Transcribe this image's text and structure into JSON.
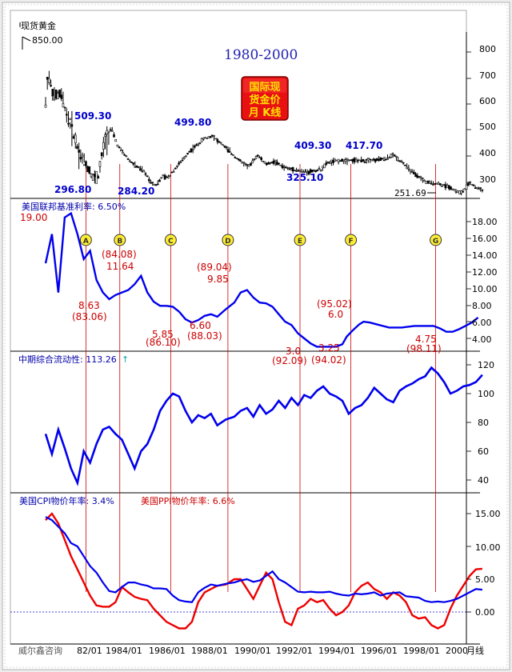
{
  "price_panel": {
    "label": "现货黄金",
    "high_value": "850.00",
    "period_title": "1980-2000",
    "badge_lines": [
      "国际现",
      "货金价",
      "月 K线"
    ],
    "annotations": [
      "509.30",
      "296.80",
      "284.20",
      "499.80",
      "409.30",
      "325.10",
      "417.70",
      "251.69"
    ],
    "axis_ticks": [
      "800",
      "700",
      "600",
      "500",
      "400",
      "300"
    ]
  },
  "rate_panel": {
    "title": "美国联邦基准利率: 6.50%",
    "markers": [
      "A",
      "B",
      "C",
      "D",
      "E",
      "F",
      "G"
    ],
    "annotations": [
      "19.00",
      "(84.08)",
      "11.64",
      "8.63",
      "(83.06)",
      "(89.04)",
      "9.85",
      "5.85",
      "(86.10)",
      "6.60",
      "(88.03)",
      "3.0",
      "(92.09)",
      "(95.02)",
      "6.0",
      "3.25",
      "(94.02)",
      "4.75",
      "(98.11)"
    ],
    "axis_ticks": [
      "18.00",
      "16.00",
      "14.00",
      "12.00",
      "10.00",
      "8.00",
      "6.00",
      "4.00"
    ]
  },
  "liquidity_panel": {
    "title": "中期综合流动性: 113.26",
    "arrow": "↑",
    "axis_ticks": [
      "120",
      "100",
      "80",
      "60",
      "40"
    ]
  },
  "inflation_panel": {
    "cpi_title": "美国CPI物价年率: 3.4%",
    "ppi_title": "美国PPI物价年率: 6.6%",
    "axis_ticks": [
      "15.00",
      "10.00",
      "5.00",
      "0.00"
    ]
  },
  "footer": {
    "source": "威尔鑫咨询",
    "period_label": "月线",
    "date_ticks": [
      "82/01",
      "1984/01",
      "1986/01",
      "1988/01",
      "1990/01",
      "1992/01",
      "1994/01",
      "1996/01",
      "1998/01",
      "2000"
    ]
  },
  "colors": {
    "price_candles": "#000000",
    "rate_line": "#0000ee",
    "liquidity_line": "#0000ee",
    "cpi_line": "#0000ee",
    "ppi_line": "#ee0000",
    "annotation_blue": "#0000cc",
    "annotation_red": "#cc0000",
    "guide_line": "#cc0000",
    "marker_fill": "#ffee33"
  },
  "chart_data": [
    {
      "type": "line",
      "x": [
        1980.0,
        1980.1,
        1980.4,
        1980.7,
        1981.0,
        1981.3,
        1981.6,
        1982.0,
        1982.3,
        1982.5,
        1982.8,
        1983.1,
        1983.4,
        1983.7,
        1984.0,
        1984.3,
        1984.6,
        1985.0,
        1985.2,
        1985.5,
        1985.8,
        1986.0,
        1986.4,
        1986.8,
        1987.1,
        1987.5,
        1987.9,
        1988.1,
        1988.4,
        1988.8,
        1989.2,
        1989.6,
        1990.0,
        1990.4,
        1990.8,
        1991.2,
        1991.6,
        1992.0,
        1992.4,
        1992.7,
        1993.0,
        1993.3,
        1993.6,
        1994.0,
        1994.5,
        1995.0,
        1995.5,
        1996.0,
        1996.4,
        1996.8,
        1997.2,
        1997.6,
        1998.0,
        1998.5,
        1999.0,
        1999.3,
        1999.6,
        1999.8,
        2000.0,
        2000.3,
        2000.6
      ],
      "values": [
        600,
        720,
        620,
        640,
        560,
        490,
        410,
        360,
        310,
        330,
        460,
        509.3,
        440,
        410,
        380,
        360,
        345,
        300,
        290,
        320,
        320,
        345,
        380,
        420,
        440,
        470,
        480,
        460,
        440,
        410,
        380,
        360,
        405,
        370,
        380,
        360,
        350,
        345,
        340,
        345,
        350,
        375,
        380,
        385,
        385,
        384,
        385,
        390,
        405,
        380,
        345,
        320,
        300,
        295,
        285,
        270,
        260,
        275,
        300,
        280,
        272
      ],
      "annotations": [
        "509.30",
        "296.80",
        "284.20",
        "499.80",
        "409.30",
        "325.10",
        "417.70",
        "251.69"
      ],
      "ylim": [
        220,
        880
      ],
      "xlim": [
        1980.0,
        2000.9
      ]
    },
    {
      "type": "line",
      "title": "美国联邦基准利率: 6.50%",
      "x": [
        1980.0,
        1980.3,
        1980.6,
        1980.9,
        1981.2,
        1981.5,
        1981.8,
        1982.1,
        1982.4,
        1982.7,
        1983.0,
        1983.3,
        1983.6,
        1983.9,
        1984.2,
        1984.5,
        1984.8,
        1985.1,
        1985.4,
        1985.7,
        1986.0,
        1986.3,
        1986.6,
        1986.9,
        1987.2,
        1987.5,
        1987.8,
        1988.1,
        1988.5,
        1988.9,
        1989.2,
        1989.5,
        1989.8,
        1990.1,
        1990.4,
        1990.7,
        1991.0,
        1991.3,
        1991.6,
        1991.9,
        1992.2,
        1992.5,
        1992.8,
        1993.1,
        1993.4,
        1993.7,
        1994.0,
        1994.2,
        1994.5,
        1994.8,
        1995.0,
        1995.3,
        1995.6,
        1995.9,
        1996.2,
        1996.5,
        1996.8,
        1997.1,
        1997.4,
        1997.7,
        1998.0,
        1998.3,
        1998.6,
        1998.9,
        1999.2,
        1999.5,
        1999.8,
        2000.1,
        2000.4
      ],
      "values": [
        13.0,
        16.5,
        9.5,
        18.5,
        19.0,
        16.5,
        13.5,
        14.5,
        11.0,
        9.5,
        8.7,
        9.2,
        9.5,
        9.8,
        10.5,
        11.5,
        9.5,
        8.4,
        7.9,
        7.9,
        7.8,
        7.2,
        6.3,
        5.9,
        6.2,
        6.7,
        6.9,
        6.6,
        7.5,
        8.3,
        9.5,
        9.8,
        8.9,
        8.3,
        8.2,
        7.8,
        6.9,
        6.0,
        5.6,
        4.6,
        4.0,
        3.4,
        3.0,
        3.0,
        3.0,
        3.0,
        3.3,
        4.2,
        5.0,
        5.7,
        6.0,
        5.9,
        5.7,
        5.5,
        5.3,
        5.3,
        5.3,
        5.4,
        5.5,
        5.5,
        5.5,
        5.5,
        5.2,
        4.8,
        4.8,
        5.1,
        5.5,
        5.9,
        6.5
      ],
      "annotations": [
        "19.00",
        "(84.08)",
        "11.64",
        "8.63",
        "(83.06)",
        "(89.04)",
        "9.85",
        "5.85",
        "(86.10)",
        "6.60",
        "(88.03)",
        "3.0",
        "(92.09)",
        "(95.02)",
        "6.0",
        "3.25",
        "(94.02)",
        "4.75",
        "(98.11)"
      ],
      "markers": [
        "A",
        "B",
        "C",
        "D",
        "E",
        "F",
        "G"
      ],
      "ylim": [
        2.5,
        19.0
      ],
      "xlim": [
        1980.0,
        2000.9
      ]
    },
    {
      "type": "line",
      "title": "中期综合流动性: 113.26",
      "x": [
        1980.0,
        1980.3,
        1980.6,
        1980.9,
        1981.2,
        1981.5,
        1981.8,
        1982.1,
        1982.4,
        1982.7,
        1983.0,
        1983.3,
        1983.6,
        1983.9,
        1984.2,
        1984.5,
        1984.8,
        1985.1,
        1985.4,
        1985.7,
        1986.0,
        1986.3,
        1986.6,
        1986.9,
        1987.2,
        1987.5,
        1987.8,
        1988.1,
        1988.5,
        1988.9,
        1989.2,
        1989.5,
        1989.8,
        1990.1,
        1990.4,
        1990.7,
        1991.0,
        1991.3,
        1991.6,
        1991.9,
        1992.2,
        1992.5,
        1992.8,
        1993.1,
        1993.4,
        1993.7,
        1994.0,
        1994.3,
        1994.6,
        1994.9,
        1995.2,
        1995.5,
        1995.8,
        1996.1,
        1996.4,
        1996.7,
        1997.0,
        1997.3,
        1997.6,
        1997.9,
        1998.2,
        1998.5,
        1998.8,
        1999.1,
        1999.4,
        1999.7,
        2000.0,
        2000.3,
        2000.6
      ],
      "values": [
        72,
        58,
        75,
        62,
        48,
        38,
        60,
        52,
        65,
        75,
        77,
        72,
        68,
        58,
        48,
        60,
        65,
        75,
        88,
        95,
        100,
        98,
        88,
        80,
        85,
        83,
        86,
        78,
        82,
        84,
        88,
        90,
        84,
        92,
        86,
        89,
        95,
        90,
        97,
        92,
        99,
        97,
        102,
        105,
        100,
        98,
        95,
        86,
        90,
        92,
        97,
        104,
        100,
        96,
        94,
        102,
        105,
        107,
        110,
        112,
        118,
        114,
        108,
        100,
        102,
        105,
        106,
        108,
        113
      ]
    },
    {
      "type": "line",
      "x": [
        1980.0,
        1980.3,
        1980.6,
        1980.9,
        1981.2,
        1981.5,
        1981.8,
        1982.1,
        1982.4,
        1982.7,
        1983.0,
        1983.3,
        1983.6,
        1983.9,
        1984.2,
        1984.5,
        1984.8,
        1985.1,
        1985.4,
        1985.7,
        1986.0,
        1986.3,
        1986.6,
        1986.9,
        1987.2,
        1987.5,
        1987.8,
        1988.1,
        1988.5,
        1988.9,
        1989.2,
        1989.5,
        1989.8,
        1990.1,
        1990.4,
        1990.7,
        1991.0,
        1991.3,
        1991.6,
        1991.9,
        1992.2,
        1992.5,
        1992.8,
        1993.1,
        1993.4,
        1993.7,
        1994.0,
        1994.3,
        1994.6,
        1994.9,
        1995.2,
        1995.5,
        1995.8,
        1996.1,
        1996.4,
        1996.7,
        1997.0,
        1997.3,
        1997.6,
        1997.9,
        1998.2,
        1998.5,
        1998.8,
        1999.1,
        1999.4,
        1999.7,
        2000.0,
        2000.3,
        2000.6
      ],
      "series": [
        {
          "name": "美国CPI物价年率: 3.4%",
          "values": [
            14.5,
            14.0,
            13.0,
            12.0,
            10.5,
            10.0,
            8.5,
            7.0,
            6.0,
            4.5,
            3.2,
            3.0,
            3.8,
            4.5,
            4.5,
            4.2,
            4.0,
            3.6,
            3.6,
            3.5,
            2.5,
            1.8,
            1.6,
            1.5,
            3.0,
            3.7,
            4.2,
            4.0,
            4.3,
            4.5,
            4.8,
            5.0,
            4.6,
            4.8,
            5.5,
            6.2,
            5.0,
            4.5,
            3.8,
            3.1,
            3.0,
            3.1,
            3.0,
            3.0,
            3.1,
            2.8,
            2.6,
            2.5,
            2.8,
            2.7,
            2.8,
            3.0,
            2.5,
            2.8,
            2.9,
            3.0,
            2.4,
            2.3,
            2.2,
            1.7,
            1.5,
            1.6,
            1.5,
            1.7,
            2.0,
            2.5,
            3.0,
            3.5,
            3.4
          ]
        },
        {
          "name": "美国PPI物价年率: 6.6%",
          "values": [
            14.0,
            15.0,
            13.5,
            11.0,
            8.5,
            6.5,
            4.5,
            2.5,
            1.0,
            0.8,
            0.8,
            1.5,
            3.8,
            3.0,
            2.3,
            2.0,
            1.8,
            0.5,
            -0.5,
            -1.5,
            -2.0,
            -2.5,
            -2.5,
            -1.5,
            1.5,
            3.0,
            3.5,
            4.0,
            4.2,
            5.0,
            5.0,
            3.5,
            2.0,
            4.0,
            6.0,
            5.0,
            1.5,
            -1.5,
            -2.0,
            0.5,
            1.0,
            2.0,
            1.5,
            1.8,
            0.5,
            -0.5,
            0.0,
            1.0,
            3.0,
            4.0,
            4.5,
            3.5,
            3.0,
            2.0,
            3.0,
            2.5,
            1.5,
            -0.5,
            -1.0,
            -0.8,
            -2.0,
            -2.5,
            -2.0,
            0.5,
            2.5,
            4.0,
            5.5,
            6.5,
            6.6
          ]
        }
      ],
      "ylim": [
        -3.5,
        16.5
      ],
      "xlim": [
        1980.0,
        2000.9
      ]
    }
  ]
}
